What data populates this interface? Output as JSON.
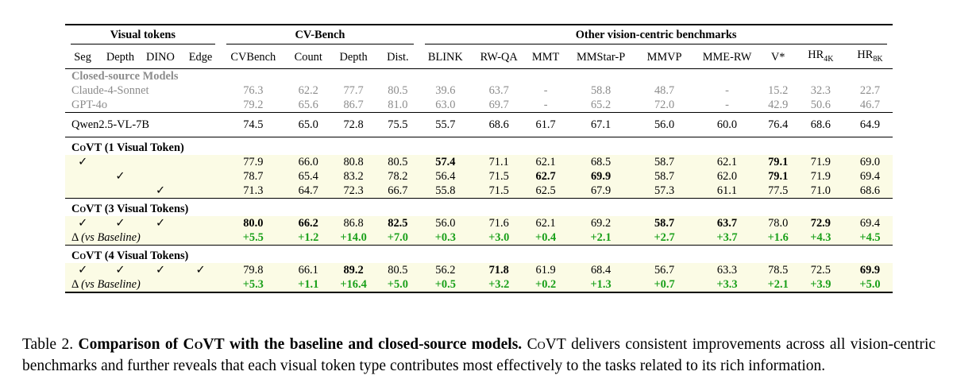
{
  "table": {
    "group_headers": {
      "visual_tokens": "Visual tokens",
      "cv_bench": "CV-Bench",
      "other": "Other vision-centric benchmarks"
    },
    "columns": [
      "Seg",
      "Depth",
      "DINO",
      "Edge",
      "CVBench",
      "Count",
      "Depth",
      "Dist.",
      "BLINK",
      "RW-QA",
      "MMT",
      "MMStar-P",
      "MMVP",
      "MME-RW",
      "V*",
      "HR",
      "HR"
    ],
    "hr_subscripts": [
      "4K",
      "8K"
    ],
    "closed_source": {
      "title": "Closed-source Models",
      "rows": [
        {
          "name": "Claude-4-Sonnet",
          "values": [
            "76.3",
            "62.2",
            "77.7",
            "80.5",
            "39.6",
            "63.7",
            "-",
            "58.8",
            "48.7",
            "-",
            "15.2",
            "32.3",
            "22.7"
          ]
        },
        {
          "name": "GPT-4o",
          "values": [
            "79.2",
            "65.6",
            "86.7",
            "81.0",
            "63.0",
            "69.7",
            "-",
            "65.2",
            "72.0",
            "-",
            "42.9",
            "50.6",
            "46.7"
          ]
        }
      ]
    },
    "baseline": {
      "name": "Qwen2.5-VL-7B",
      "values": [
        "74.5",
        "65.0",
        "72.8",
        "75.5",
        "55.7",
        "68.6",
        "61.7",
        "67.1",
        "56.0",
        "60.0",
        "76.4",
        "68.6",
        "64.9"
      ]
    },
    "covt1": {
      "title_prefix": "CoVT",
      "title_suffix": "(1 Visual Token)",
      "rows": [
        {
          "checks": [
            "✓",
            "",
            "",
            ""
          ],
          "values": [
            "77.9",
            "66.0",
            "80.8",
            "80.5",
            "57.4",
            "71.1",
            "62.1",
            "68.5",
            "58.7",
            "62.1",
            "79.1",
            "71.9",
            "69.0"
          ]
        },
        {
          "checks": [
            "",
            "✓",
            "",
            ""
          ],
          "values": [
            "78.7",
            "65.4",
            "83.2",
            "78.2",
            "56.4",
            "71.5",
            "62.7",
            "69.9",
            "58.7",
            "62.0",
            "79.1",
            "71.9",
            "69.4"
          ]
        },
        {
          "checks": [
            "",
            "",
            "✓",
            ""
          ],
          "values": [
            "71.3",
            "64.7",
            "72.3",
            "66.7",
            "55.8",
            "71.5",
            "62.5",
            "67.9",
            "57.3",
            "61.1",
            "77.5",
            "71.0",
            "68.6"
          ]
        }
      ]
    },
    "covt3": {
      "title_prefix": "CoVT",
      "title_suffix": "(3 Visual Tokens)",
      "checks": [
        "✓",
        "✓",
        "✓",
        ""
      ],
      "values": [
        "80.0",
        "66.2",
        "86.8",
        "82.5",
        "56.0",
        "71.6",
        "62.1",
        "69.2",
        "58.7",
        "63.7",
        "78.0",
        "72.9",
        "69.4"
      ],
      "delta_label": "Δ",
      "delta_note": "(vs Baseline)",
      "deltas": [
        "+5.5",
        "+1.2",
        "+14.0",
        "+7.0",
        "+0.3",
        "+3.0",
        "+0.4",
        "+2.1",
        "+2.7",
        "+3.7",
        "+1.6",
        "+4.3",
        "+4.5"
      ]
    },
    "covt4": {
      "title_prefix": "CoVT",
      "title_suffix": "(4 Visual Tokens)",
      "checks": [
        "✓",
        "✓",
        "✓",
        "✓"
      ],
      "values": [
        "79.8",
        "66.1",
        "89.2",
        "80.5",
        "56.2",
        "71.8",
        "61.9",
        "68.4",
        "56.7",
        "63.3",
        "78.5",
        "72.5",
        "69.9"
      ],
      "delta_label": "Δ",
      "delta_note": "(vs Baseline)",
      "deltas": [
        "+5.3",
        "+1.1",
        "+16.4",
        "+5.0",
        "+0.5",
        "+3.2",
        "+0.2",
        "+1.3",
        "+0.7",
        "+3.3",
        "+2.1",
        "+3.9",
        "+5.0"
      ]
    }
  },
  "caption": {
    "label": "Table 2.",
    "bold": "Comparison of CoVT with the baseline and closed-source models.",
    "text": "CoVT delivers consistent improvements across all vision-centric benchmarks and further reveals that each visual token type contributes most effectively to the tasks related to its rich information."
  },
  "colors": {
    "highlight": "#fbfbe5",
    "green": "#1aa01a",
    "grey": "#8c8c8c"
  }
}
